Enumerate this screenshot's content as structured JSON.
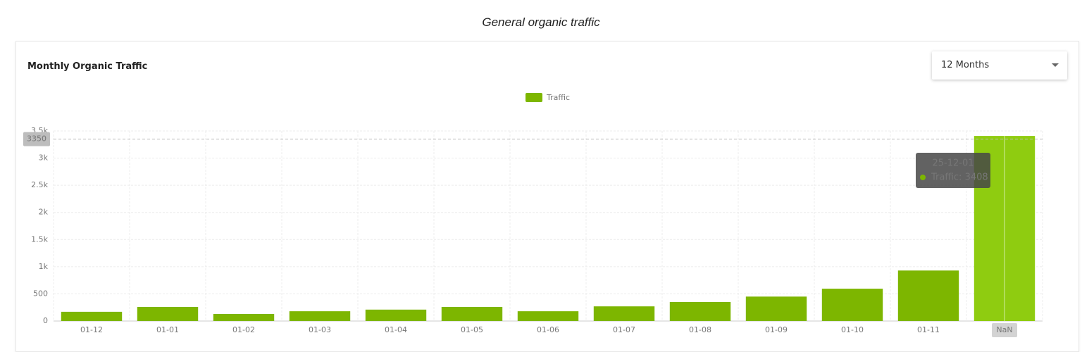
{
  "page": {
    "title": "General organic traffic"
  },
  "card": {
    "title": "Monthly Organic Traffic",
    "dropdown": "12 Months"
  },
  "chart_data": {
    "type": "bar",
    "series": [
      {
        "name": "Traffic",
        "color": "#7db600",
        "highlight_color": "#8fcc10",
        "values": [
          170,
          260,
          130,
          180,
          210,
          260,
          180,
          270,
          350,
          450,
          595,
          930,
          3408
        ]
      }
    ],
    "categories": [
      "01-12",
      "01-01",
      "01-02",
      "01-03",
      "01-04",
      "01-05",
      "01-06",
      "01-07",
      "01-08",
      "01-09",
      "01-10",
      "01-11",
      "NaN"
    ],
    "ylim": [
      0,
      3500
    ],
    "yticks": [
      0,
      500,
      {
        "value": 1000,
        "label": "1k"
      },
      {
        "value": 1500,
        "label": "1.5k"
      },
      {
        "value": 2000,
        "label": "2k"
      },
      {
        "value": 2500,
        "label": "2.5k"
      },
      {
        "value": 3000,
        "label": "3k"
      },
      {
        "value": 3500,
        "label": "3.5k"
      }
    ],
    "grid": true,
    "crosshair": {
      "value": 3350
    },
    "tooltip": {
      "index": 12,
      "title": "25-12-01",
      "label": "Traffic: 3408"
    }
  }
}
